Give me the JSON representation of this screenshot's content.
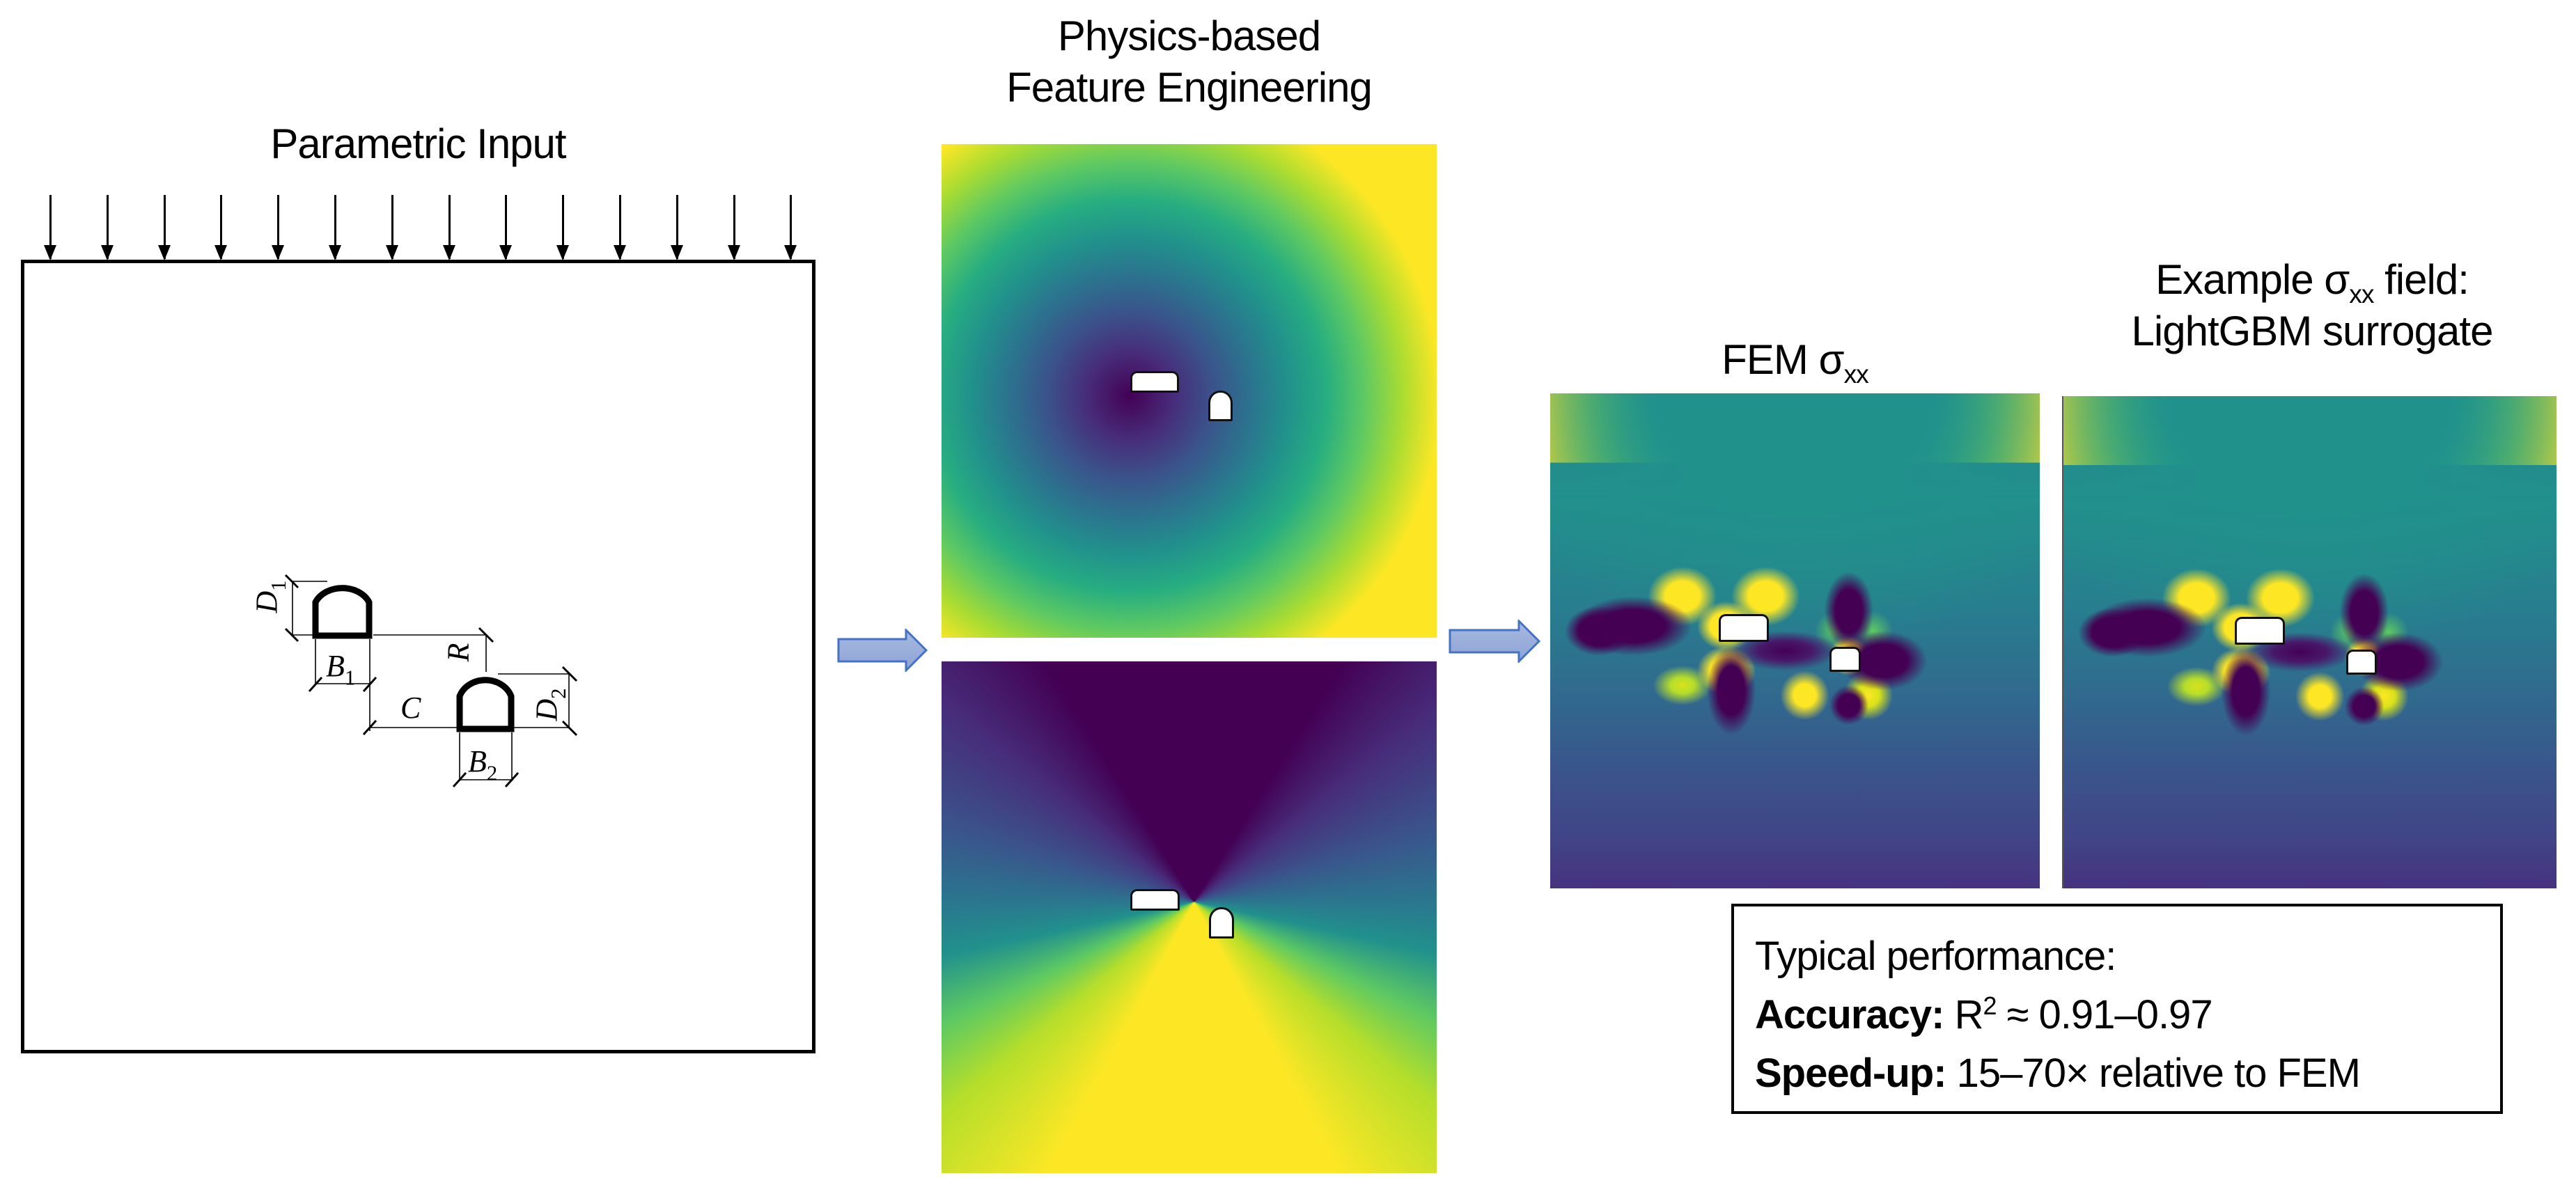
{
  "panels": {
    "parametric_input": {
      "title": "Parametric Input",
      "load_arrow_count": 14,
      "geometry_labels": {
        "d1": "D",
        "d1_sub": "1",
        "b1": "B",
        "b1_sub": "1",
        "c": "C",
        "r": "R",
        "d2": "D",
        "d2_sub": "2",
        "b2": "B",
        "b2_sub": "2"
      }
    },
    "feature_engineering": {
      "title_line1": "Physics-based",
      "title_line2": "Feature Engineering",
      "maps": [
        "distance-field-map",
        "angle-field-map"
      ],
      "colormap": "viridis"
    },
    "fem": {
      "title_main": "FEM σ",
      "title_sub": "xx"
    },
    "surrogate": {
      "title_line1_pre": "Example σ",
      "title_line1_sub": "xx",
      "title_line1_post": " field:",
      "title_line2": "LightGBM surrogate"
    }
  },
  "performance": {
    "heading": "Typical performance:",
    "accuracy_label": "Accuracy:",
    "accuracy_value_pre": " R",
    "accuracy_value_sup": "2",
    "accuracy_value_post": " ≈ 0.91–0.97",
    "speedup_label": "Speed-up:",
    "speedup_value": " 15–70× relative to FEM"
  },
  "colors": {
    "arrow_fill": "#9cb0dc",
    "arrow_stroke": "#4472c4",
    "viridis_low": "#440154",
    "viridis_mid": "#21918c",
    "viridis_high": "#fde725"
  }
}
